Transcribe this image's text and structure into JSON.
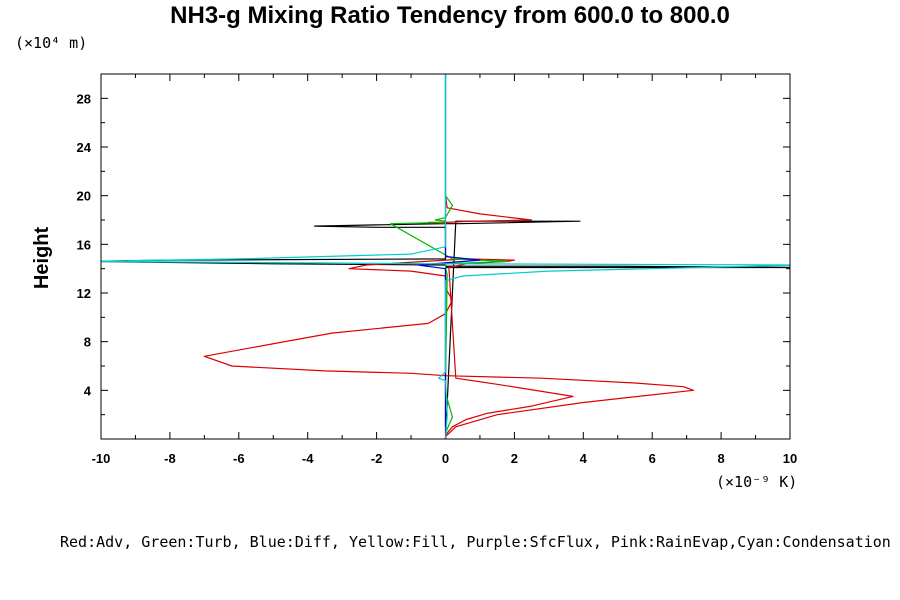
{
  "chart_data": {
    "type": "line",
    "title": "NH3-g Mixing Ratio Tendency from 600.0 to 800.0",
    "xlabel": "",
    "ylabel": "Height",
    "y_units": "(×10⁴ m)",
    "x_units": "(×10⁻⁹ K)",
    "xlim": [
      -10,
      10
    ],
    "ylim": [
      0,
      30
    ],
    "x_ticks": [
      -10,
      -8,
      -6,
      -4,
      -2,
      0,
      2,
      4,
      6,
      8,
      10
    ],
    "y_ticks": [
      4,
      8,
      12,
      16,
      20,
      24,
      28
    ],
    "legend_text": "Red:Adv, Green:Turb, Blue:Diff, Yellow:Fill, Purple:SfcFlux, Pink:RainEvap,Cyan:Condensation",
    "series": [
      {
        "name": "Black",
        "color": "#000000",
        "x": [
          0,
          0.3,
          3.9,
          0.4,
          0,
          -2.0,
          -3.8,
          -2.0,
          0,
          0,
          -8.0,
          -10.4,
          -5.0,
          0,
          0,
          5.0,
          10.4,
          5.0,
          0,
          0,
          0
        ],
        "y": [
          0,
          17.9,
          17.9,
          17.7,
          17.7,
          17.6,
          17.5,
          17.4,
          17.4,
          14.8,
          14.7,
          14.6,
          14.4,
          14.3,
          14.2,
          14.2,
          14.1,
          14.1,
          14.1,
          13.5,
          1.0
        ]
      },
      {
        "name": "Red",
        "color": "#dd0000",
        "x": [
          0,
          0.02,
          0.2,
          0.6,
          1.2,
          2.5,
          3.7,
          1.5,
          0.3,
          0.1,
          0.6,
          1.8,
          2.0,
          0.6,
          -2.3,
          -2.8,
          -1.0,
          0,
          0,
          0.2,
          0,
          -0.5,
          -3.3,
          -7.0,
          -6.2,
          -3.5,
          -1.0,
          0,
          2.8,
          5.5,
          6.9,
          7.2,
          4.0,
          1.5,
          0.3,
          0
        ],
        "y": [
          0,
          0.4,
          1.0,
          1.6,
          2.1,
          2.7,
          3.5,
          4.5,
          5.0,
          14.1,
          14.4,
          14.6,
          14.7,
          14.8,
          14.3,
          14.0,
          13.8,
          13.4,
          12.4,
          11.4,
          10.3,
          9.5,
          8.7,
          6.8,
          6.0,
          5.6,
          5.4,
          5.2,
          5.0,
          4.6,
          4.3,
          4.0,
          3.0,
          2.0,
          1.0,
          0.2
        ]
      },
      {
        "name": "Red upper",
        "color": "#dd0000",
        "x": [
          0,
          0.05,
          1.0,
          2.5,
          0.8,
          0,
          -0.5,
          0
        ],
        "y": [
          20.0,
          19.0,
          18.5,
          18.0,
          17.9,
          17.8,
          17.8,
          17.7
        ]
      },
      {
        "name": "Green",
        "color": "#00bb00",
        "x": [
          0,
          0.2,
          0,
          0,
          0.05,
          0,
          0,
          1.8,
          0.2,
          -1.6,
          0,
          0,
          -0.3,
          0,
          0.2,
          0,
          0,
          0
        ],
        "y": [
          0.5,
          1.8,
          3.8,
          5.0,
          13.5,
          14.1,
          14.4,
          14.6,
          14.8,
          17.7,
          17.8,
          17.9,
          18.0,
          18.2,
          19.2,
          20.0,
          29.0,
          30.0
        ]
      },
      {
        "name": "Blue",
        "color": "#0000cc",
        "x": [
          0,
          0,
          -0.8,
          1.0,
          0,
          0,
          0,
          0,
          0
        ],
        "y": [
          0,
          14.0,
          14.3,
          14.7,
          15.0,
          15.1,
          15.7,
          20.0,
          30.0
        ]
      },
      {
        "name": "Cyan",
        "color": "#00cccc",
        "x": [
          0,
          0.05,
          0.0,
          -0.2,
          0,
          0,
          0.5,
          3.0,
          10.4,
          0,
          -5.0,
          -10.4,
          -6.0,
          -1.0,
          0,
          0,
          0,
          0
        ],
        "y": [
          0,
          2.0,
          4.8,
          5.0,
          5.5,
          13.0,
          13.4,
          13.8,
          14.3,
          14.4,
          14.5,
          14.6,
          14.8,
          15.2,
          15.8,
          16.5,
          20.0,
          30.0
        ]
      }
    ]
  }
}
